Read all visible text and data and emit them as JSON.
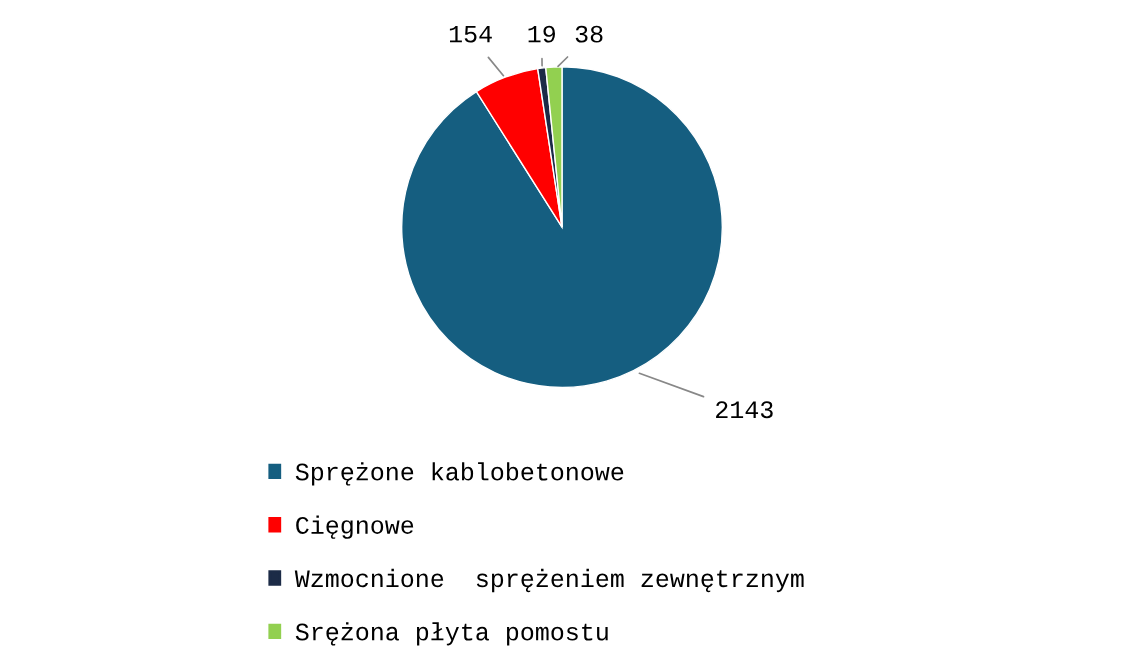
{
  "chart_data": {
    "type": "pie",
    "categories": [
      "Sprężone kablobetonowe",
      "Cięgnowe",
      "Wzmocnione  sprężeniem zewnętrznym",
      "Srężona płyta pomostu"
    ],
    "values": [
      2143,
      154,
      19,
      38
    ],
    "colors": [
      "#155e80",
      "#ff0000",
      "#1c2b47",
      "#92d050"
    ],
    "data_labels": true,
    "legend": "bottom"
  }
}
